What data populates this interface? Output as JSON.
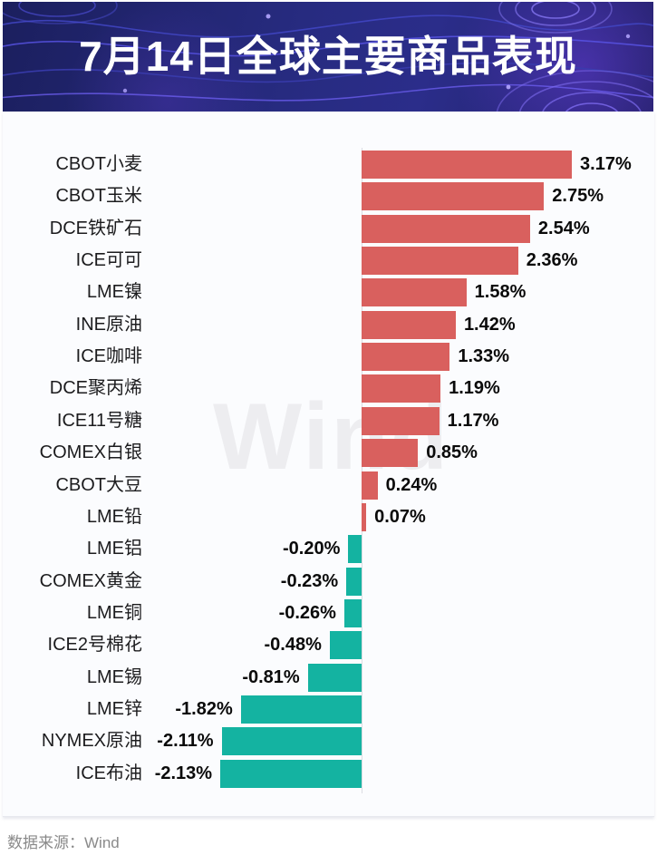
{
  "banner": {
    "title": "7月14日全球主要商品表现",
    "background_color": "#232a70",
    "title_color": "#ffffff"
  },
  "watermark": {
    "text": "Wind",
    "color": "#ededf0"
  },
  "footer": {
    "source_label": "数据来源：Wind",
    "color": "#8a8a8a"
  },
  "chart_data": {
    "type": "bar",
    "orientation": "horizontal",
    "title": "7月14日全球主要商品表现",
    "unit": "%",
    "positive_color": "#d9605e",
    "negative_color": "#14b3a1",
    "zero_line_color": "#dcdce2",
    "legend": "none",
    "grid": "off",
    "categories": [
      "CBOT小麦",
      "CBOT玉米",
      "DCE铁矿石",
      "ICE可可",
      "LME镍",
      "INE原油",
      "ICE咖啡",
      "DCE聚丙烯",
      "ICE11号糖",
      "COMEX白银",
      "CBOT大豆",
      "LME铅",
      "LME铝",
      "COMEX黄金",
      "LME铜",
      "ICE2号棉花",
      "LME锡",
      "LME锌",
      "NYMEX原油",
      "ICE布油"
    ],
    "values": [
      3.17,
      2.75,
      2.54,
      2.36,
      1.58,
      1.42,
      1.33,
      1.19,
      1.17,
      0.85,
      0.24,
      0.07,
      -0.2,
      -0.23,
      -0.26,
      -0.48,
      -0.81,
      -1.82,
      -2.11,
      -2.13
    ],
    "value_labels": [
      "3.17%",
      "2.75%",
      "2.54%",
      "2.36%",
      "1.58%",
      "1.42%",
      "1.33%",
      "1.19%",
      "1.17%",
      "0.85%",
      "0.24%",
      "0.07%",
      "-0.20%",
      "-0.23%",
      "-0.26%",
      "-0.48%",
      "-0.81%",
      "-1.82%",
      "-2.11%",
      "-2.13%"
    ]
  }
}
